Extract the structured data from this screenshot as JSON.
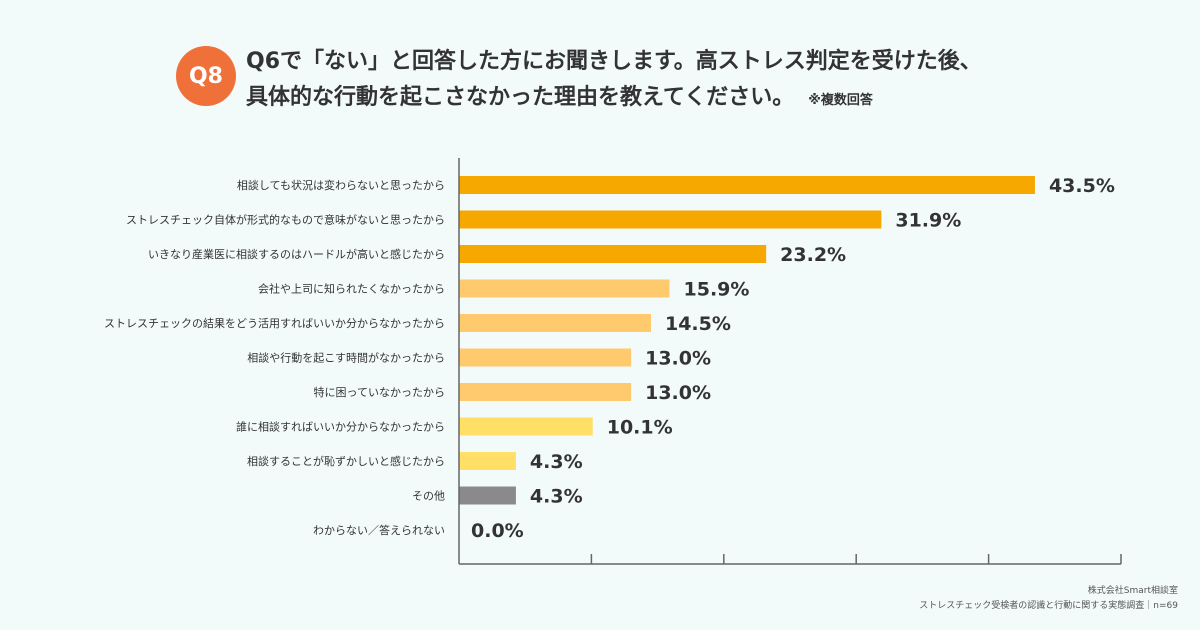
{
  "header": {
    "badge": "Q8",
    "title_line1": "Q6で「ない」と回答した方にお聞きします。高ストレス判定を受けた後、",
    "title_line2": "具体的な行動を起こさなかった理由を教えてください。",
    "note": "※複数回答"
  },
  "footer": {
    "company": "株式会社Smart相談室",
    "source": "ストレスチェック受検者の認識と行動に関する実態調査｜n=69"
  },
  "chart_data": {
    "type": "bar",
    "orientation": "horizontal",
    "categories": [
      "相談しても状況は変わらないと思ったから",
      "ストレスチェック自体が形式的なもので意味がないと思ったから",
      "いきなり産業医に相談するのはハードルが高いと感じたから",
      "会社や上司に知られたくなかったから",
      "ストレスチェックの結果をどう活用すればいいか分からなかったから",
      "相談や行動を起こす時間がなかったから",
      "特に困っていなかったから",
      "誰に相談すればいいか分からなかったから",
      "相談することが恥ずかしいと感じたから",
      "その他",
      "わからない／答えられない"
    ],
    "values": [
      43.5,
      31.9,
      23.2,
      15.9,
      14.5,
      13.0,
      13.0,
      10.1,
      4.3,
      4.3,
      0.0
    ],
    "labels": [
      "43.5%",
      "31.9%",
      "23.2%",
      "15.9%",
      "14.5%",
      "13.0%",
      "13.0%",
      "10.1%",
      "4.3%",
      "4.3%",
      "0.0%"
    ],
    "colors": [
      "#f7a800",
      "#f7a800",
      "#f7a800",
      "#ffc96e",
      "#ffc96e",
      "#ffc96e",
      "#ffc96e",
      "#ffdf66",
      "#ffdf66",
      "#8a8a8a",
      "#8a8a8a"
    ],
    "xlim": [
      0,
      50
    ],
    "xticks": [
      0,
      10,
      20,
      30,
      40,
      50
    ],
    "tick_labels_shown": false,
    "grid": false
  }
}
